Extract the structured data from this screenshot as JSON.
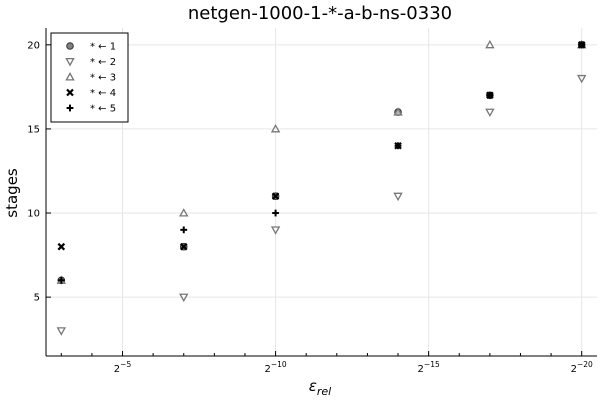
{
  "chart_data": {
    "type": "scatter",
    "title": "netgen-1000-1-*-a-b-ns-0330",
    "xlabel": "ε_rel",
    "ylabel": "stages",
    "x_scale": "log2",
    "xlim_exp": [
      -2.5,
      -20.5
    ],
    "ylim": [
      1.5,
      21
    ],
    "x_ticks": [
      {
        "exp": -5,
        "base": "2",
        "sup": "−5"
      },
      {
        "exp": -10,
        "base": "2",
        "sup": "−10"
      },
      {
        "exp": -15,
        "base": "2",
        "sup": "−15"
      },
      {
        "exp": -20,
        "base": "2",
        "sup": "−20"
      }
    ],
    "y_ticks": [
      5,
      10,
      15,
      20
    ],
    "legend_position": "top-left",
    "series": [
      {
        "name": "* ← 1",
        "marker": "circle",
        "color": "#555555",
        "points": [
          {
            "x_exp": -3,
            "y": 6
          },
          {
            "x_exp": -7,
            "y": 8
          },
          {
            "x_exp": -10,
            "y": 11
          },
          {
            "x_exp": -14,
            "y": 16
          },
          {
            "x_exp": -17,
            "y": 17
          },
          {
            "x_exp": -20,
            "y": 20
          }
        ]
      },
      {
        "name": "* ← 2",
        "marker": "triangle-down",
        "color": "#777777",
        "points": [
          {
            "x_exp": -3,
            "y": 3
          },
          {
            "x_exp": -7,
            "y": 5
          },
          {
            "x_exp": -10,
            "y": 9
          },
          {
            "x_exp": -14,
            "y": 11
          },
          {
            "x_exp": -17,
            "y": 16
          },
          {
            "x_exp": -20,
            "y": 18
          }
        ]
      },
      {
        "name": "* ← 3",
        "marker": "triangle-up",
        "color": "#777777",
        "points": [
          {
            "x_exp": -3,
            "y": 6
          },
          {
            "x_exp": -7,
            "y": 10
          },
          {
            "x_exp": -10,
            "y": 15
          },
          {
            "x_exp": -14,
            "y": 16
          },
          {
            "x_exp": -17,
            "y": 20
          },
          {
            "x_exp": -20,
            "y": 20
          }
        ]
      },
      {
        "name": "* ← 4",
        "marker": "x",
        "color": "#000000",
        "points": [
          {
            "x_exp": -3,
            "y": 8
          },
          {
            "x_exp": -7,
            "y": 8
          },
          {
            "x_exp": -10,
            "y": 11
          },
          {
            "x_exp": -14,
            "y": 14
          },
          {
            "x_exp": -17,
            "y": 17
          },
          {
            "x_exp": -20,
            "y": 20
          }
        ]
      },
      {
        "name": "* ← 5",
        "marker": "plus",
        "color": "#000000",
        "points": [
          {
            "x_exp": -3,
            "y": 6
          },
          {
            "x_exp": -7,
            "y": 9
          },
          {
            "x_exp": -10,
            "y": 10
          },
          {
            "x_exp": -14,
            "y": 14
          },
          {
            "x_exp": -17,
            "y": 17
          },
          {
            "x_exp": -20,
            "y": 20
          }
        ]
      }
    ]
  }
}
